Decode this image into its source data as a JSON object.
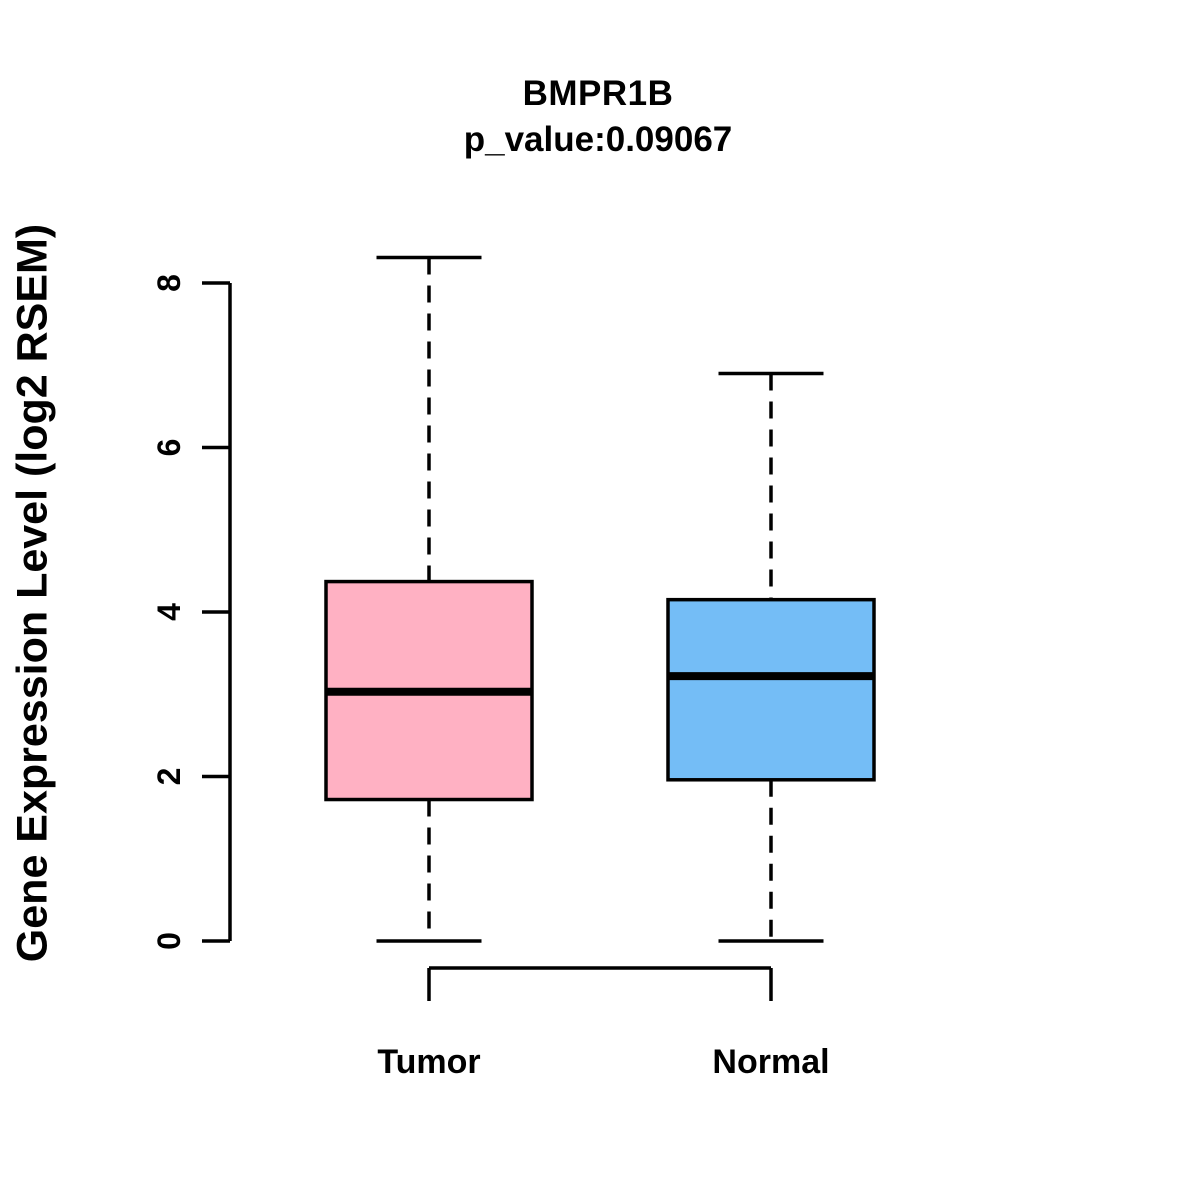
{
  "chart_data": {
    "type": "boxplot",
    "title": "BMPR1B",
    "subtitle": "p_value:0.09067",
    "ylabel": "Gene Expression Level (log2 RSEM)",
    "xlabel": "",
    "ylim": [
      0,
      8
    ],
    "yticks": [
      0,
      2,
      4,
      6,
      8
    ],
    "grid": false,
    "legend": "none",
    "categories": [
      "Tumor",
      "Normal"
    ],
    "series": [
      {
        "name": "Tumor",
        "fill_color": "#FFB1C3",
        "whisker_low": 0.0,
        "q1": 1.72,
        "median": 3.03,
        "q3": 4.37,
        "whisker_high": 8.31
      },
      {
        "name": "Normal",
        "fill_color": "#74BDF6",
        "whisker_low": 0.0,
        "q1": 1.96,
        "median": 3.22,
        "q3": 4.15,
        "whisker_high": 6.9
      }
    ],
    "box_border_color": "#000000",
    "median_color": "#000000",
    "axis_color": "#000000",
    "whisker_style": "dashed"
  }
}
